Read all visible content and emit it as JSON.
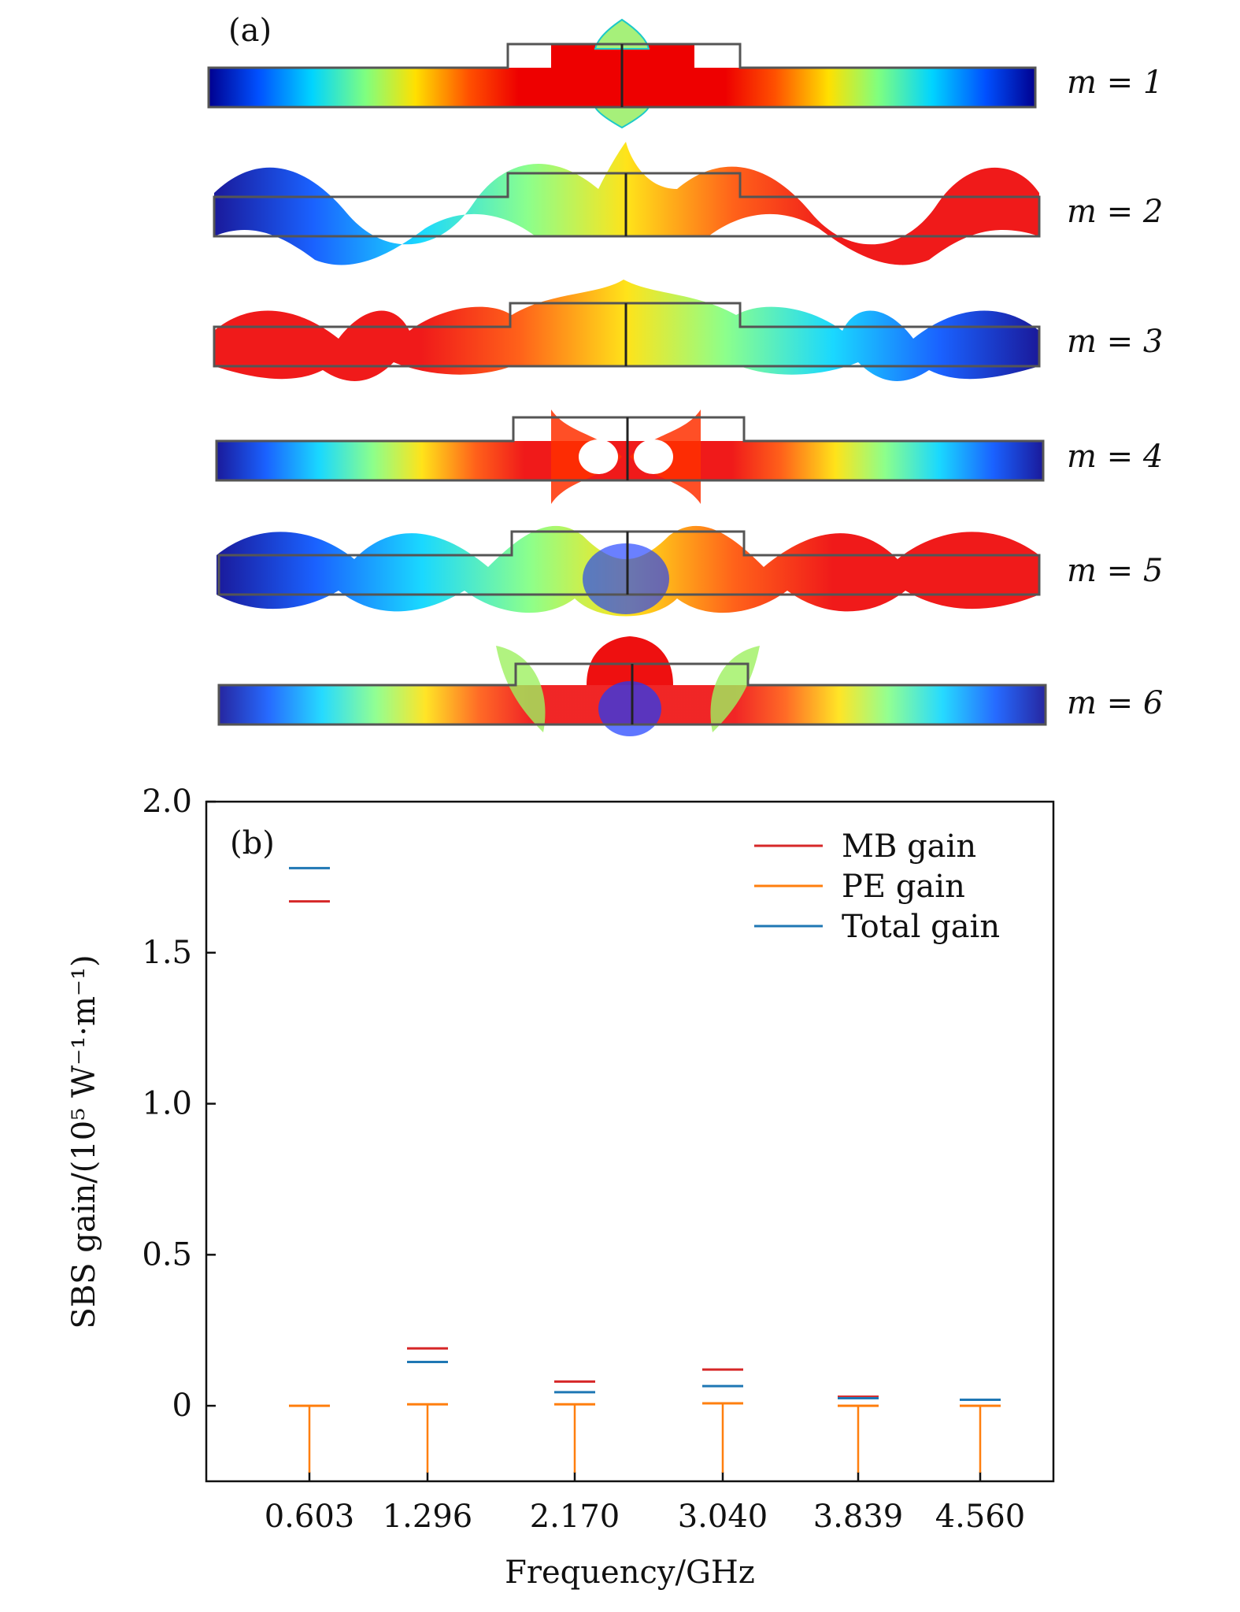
{
  "panel_a": {
    "label": "(a)",
    "modes": [
      {
        "label": "m = 1",
        "m": 1
      },
      {
        "label": "m = 2",
        "m": 2
      },
      {
        "label": "m = 3",
        "m": 3
      },
      {
        "label": "m = 4",
        "m": 4
      },
      {
        "label": "m = 5",
        "m": 5
      },
      {
        "label": "m = 6",
        "m": 6
      }
    ]
  },
  "chart_data": {
    "type": "bar",
    "panel_label": "(b)",
    "title": "",
    "xlabel": "Frequency/GHz",
    "ylabel": "SBS gain/(10⁵ W⁻¹·m⁻¹)",
    "categories": [
      "0.603",
      "1.296",
      "2.170",
      "3.040",
      "3.839",
      "4.560"
    ],
    "ylim": [
      -0.25,
      2.0
    ],
    "yticks": [
      0,
      0.5,
      1.0,
      1.5,
      2.0
    ],
    "ytick_labels": [
      "0",
      "0.5",
      "1.0",
      "1.5",
      "2.0"
    ],
    "legend_position": "top-right",
    "series": [
      {
        "name": "MB gain",
        "color": "#d62728",
        "values": [
          1.67,
          0.19,
          0.08,
          0.12,
          0.03,
          0.02
        ]
      },
      {
        "name": "PE gain",
        "color": "#ff7f0e",
        "values": [
          0.0,
          0.005,
          0.005,
          0.008,
          0.0,
          0.0
        ]
      },
      {
        "name": "Total gain",
        "color": "#1f77b4",
        "values": [
          1.78,
          0.145,
          0.045,
          0.065,
          0.025,
          0.02
        ]
      }
    ]
  }
}
